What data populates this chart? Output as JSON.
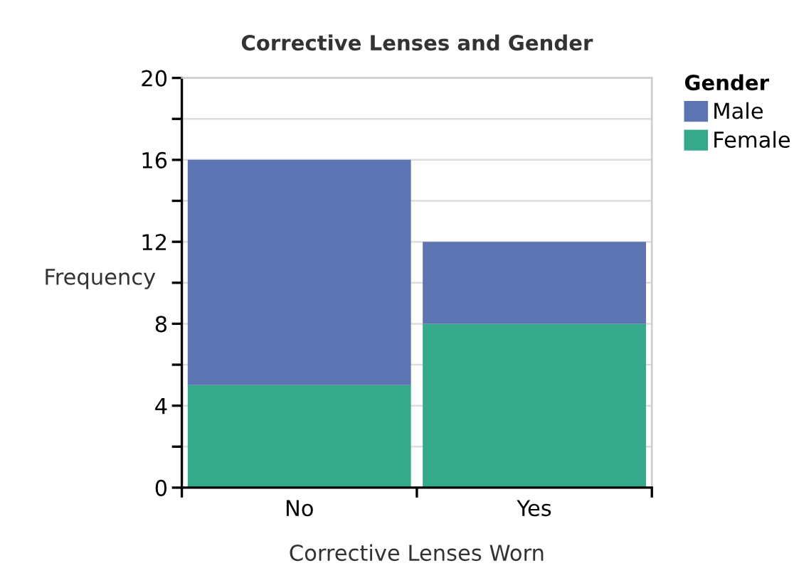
{
  "chart_data": {
    "type": "bar",
    "title": "Corrective Lenses and Gender",
    "xlabel": "Corrective Lenses Worn",
    "ylabel": "Frequency",
    "legend_title": "Gender",
    "categories": [
      "No",
      "Yes"
    ],
    "stacked": true,
    "series": [
      {
        "name": "Female",
        "color": "#36a98b",
        "values": [
          5,
          8
        ]
      },
      {
        "name": "Male",
        "color": "#5d74b2",
        "values": [
          11,
          4
        ]
      }
    ],
    "ylim": [
      0,
      20
    ],
    "yticks": [
      0,
      {
        "value": 2,
        "label": null
      },
      4,
      {
        "value": 6,
        "label": null
      },
      8,
      {
        "value": 10,
        "label": null
      },
      12,
      {
        "value": 14,
        "label": null
      },
      16,
      {
        "value": 18,
        "label": null
      },
      20
    ],
    "grid": "y",
    "legend": "top right"
  }
}
